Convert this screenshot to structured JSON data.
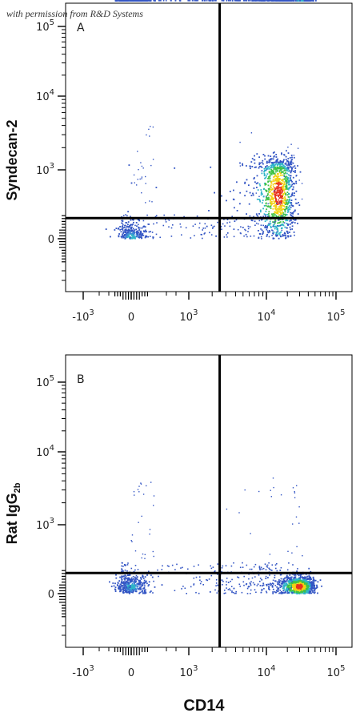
{
  "watermark": "with permission from R&D Systems",
  "xlabel": "CD14",
  "chart_data": [
    {
      "type": "scatter",
      "panel": "A",
      "ylabel": "Syndecan-2",
      "x_ticks": [
        "-10^3",
        "0",
        "10^3",
        "10^4",
        "10^5"
      ],
      "y_ticks": [
        "0",
        "10^3",
        "10^4",
        "10^5"
      ],
      "x_scale": "biexponential",
      "y_scale": "biexponential",
      "quadrant_gate": {
        "x": 2500,
        "y": 300
      },
      "populations": [
        {
          "name": "",
          "x_center": 0,
          "y_center": 0,
          "x_spread": 150,
          "y_spread": 120,
          "density": "medium"
        },
        {
          "name": "",
          "x_center": 15000,
          "y_center": 650,
          "x_spread": 5000,
          "y_spread": 400,
          "density": "high"
        }
      ],
      "legend": "none",
      "grid": false
    },
    {
      "type": "scatter",
      "panel": "B",
      "ylabel": "Rat IgG",
      "ylabel_sub": "2b",
      "x_ticks": [
        "-10^3",
        "0",
        "10^3",
        "10^4",
        "10^5"
      ],
      "y_ticks": [
        "0",
        "10^3",
        "10^4",
        "10^5"
      ],
      "x_scale": "biexponential",
      "y_scale": "biexponential",
      "quadrant_gate": {
        "x": 2500,
        "y": 300
      },
      "populations": [
        {
          "name": "",
          "x_center": 0,
          "y_center": 100,
          "x_spread": 150,
          "y_spread": 80,
          "density": "medium"
        },
        {
          "name": "",
          "x_center": 30000,
          "y_center": 100,
          "x_spread": 9000,
          "y_spread": 80,
          "density": "high"
        }
      ],
      "legend": "none",
      "grid": false
    }
  ]
}
